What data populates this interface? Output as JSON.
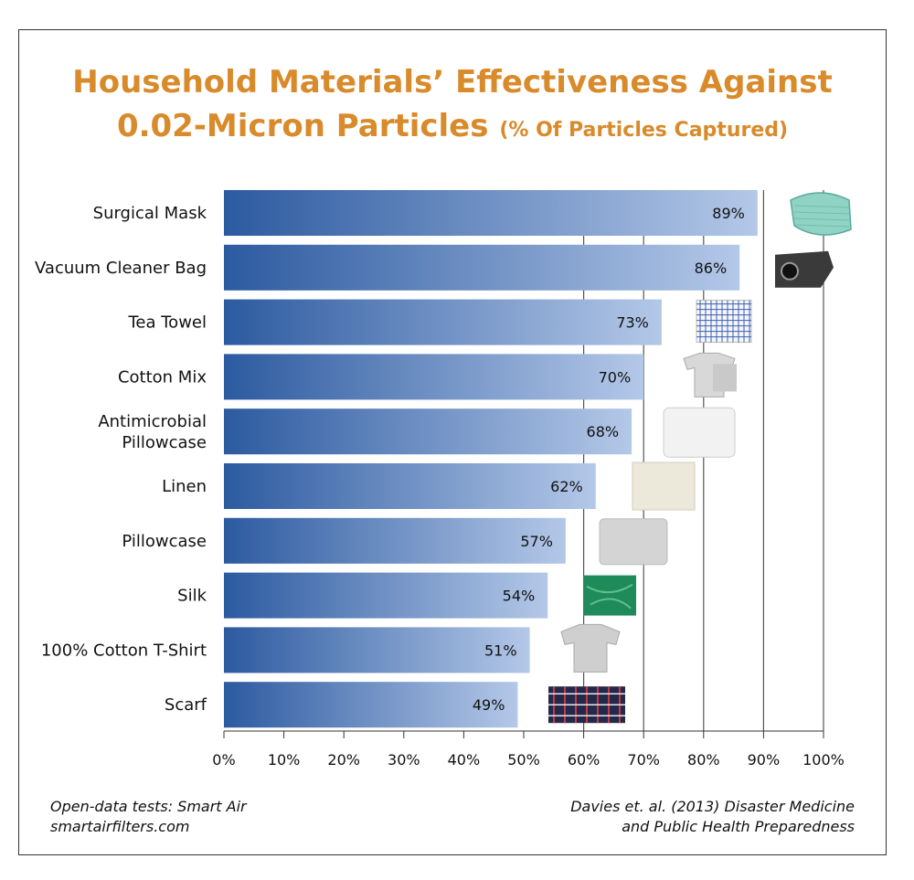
{
  "chart_data": {
    "type": "bar",
    "orientation": "horizontal",
    "title_line1": "Household Materials’ Effectiveness Against",
    "title_line2": "0.02-Micron Particles",
    "subtitle": "(% Of Particles Captured)",
    "categories": [
      "Surgical Mask",
      "Vacuum Cleaner Bag",
      "Tea Towel",
      "Cotton Mix",
      "Antimicrobial Pillowcase",
      "Linen",
      "Pillowcase",
      "Silk",
      "100% Cotton T-Shirt",
      "Scarf"
    ],
    "values": [
      89,
      86,
      73,
      70,
      68,
      62,
      57,
      54,
      51,
      49
    ],
    "data_labels": [
      "89%",
      "86%",
      "73%",
      "70%",
      "68%",
      "62%",
      "57%",
      "54%",
      "51%",
      "49%"
    ],
    "x_ticks": [
      "0%",
      "10%",
      "20%",
      "30%",
      "40%",
      "50%",
      "60%",
      "70%",
      "80%",
      "90%",
      "100%"
    ],
    "xlim": [
      0,
      100
    ],
    "grid": true,
    "colors": {
      "bar_start": "#2c5aa0",
      "bar_end": "#b4c8e8",
      "title": "#d98a2a",
      "grid": "#555555"
    },
    "icons": [
      "surgical-mask-icon",
      "vacuum-bag-icon",
      "tea-towel-icon",
      "cotton-mix-shirt-icon",
      "antimicrobial-pillowcase-icon",
      "linen-icon",
      "pillowcase-icon",
      "silk-icon",
      "cotton-tshirt-icon",
      "scarf-icon"
    ]
  },
  "footer": {
    "left_line1": "Open-data tests: Smart Air",
    "left_line2": "smartairfilters.com",
    "right_line1": "Davies et. al. (2013) Disaster Medicine",
    "right_line2": "and Public Health Preparedness"
  }
}
